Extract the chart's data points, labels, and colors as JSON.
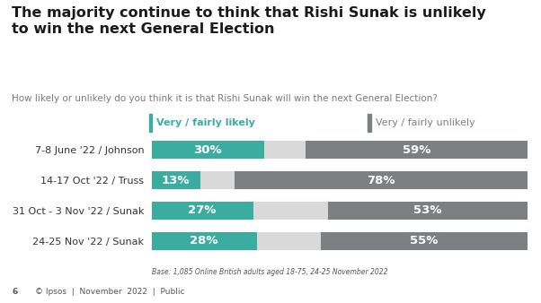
{
  "title": "The majority continue to think that Rishi Sunak is unlikely\nto win the next General Election",
  "subtitle": "How likely or unlikely do you think it is that Rishi Sunak will win the next General Election?",
  "categories": [
    "24-25 Nov '22 / Sunak",
    "31 Oct - 3 Nov '22 / Sunak",
    "14-17 Oct '22 / Truss",
    "7-8 June '22 / Johnson"
  ],
  "likely": [
    28,
    27,
    13,
    30
  ],
  "unlikely": [
    55,
    53,
    78,
    59
  ],
  "likely_color": "#3aada0",
  "unlikely_color": "#7d8080",
  "gap_color": "#d9d9d9",
  "legend_likely_label": "Very / fairly likely",
  "legend_unlikely_label": "Very / fairly unlikely",
  "base_note": "Base: 1,085 Online British adults aged 18-75, 24-25 November 2022",
  "footer": "© Ipsos  |  November  2022  |  Public",
  "page_num": "6",
  "background_color": "#ffffff",
  "bar_height": 0.6,
  "title_fontsize": 11.5,
  "subtitle_fontsize": 7.5,
  "label_fontsize": 8,
  "pct_fontsize": 9.5,
  "legend_fontsize": 8,
  "footer_fontsize": 6.5,
  "base_fontsize": 5.5
}
